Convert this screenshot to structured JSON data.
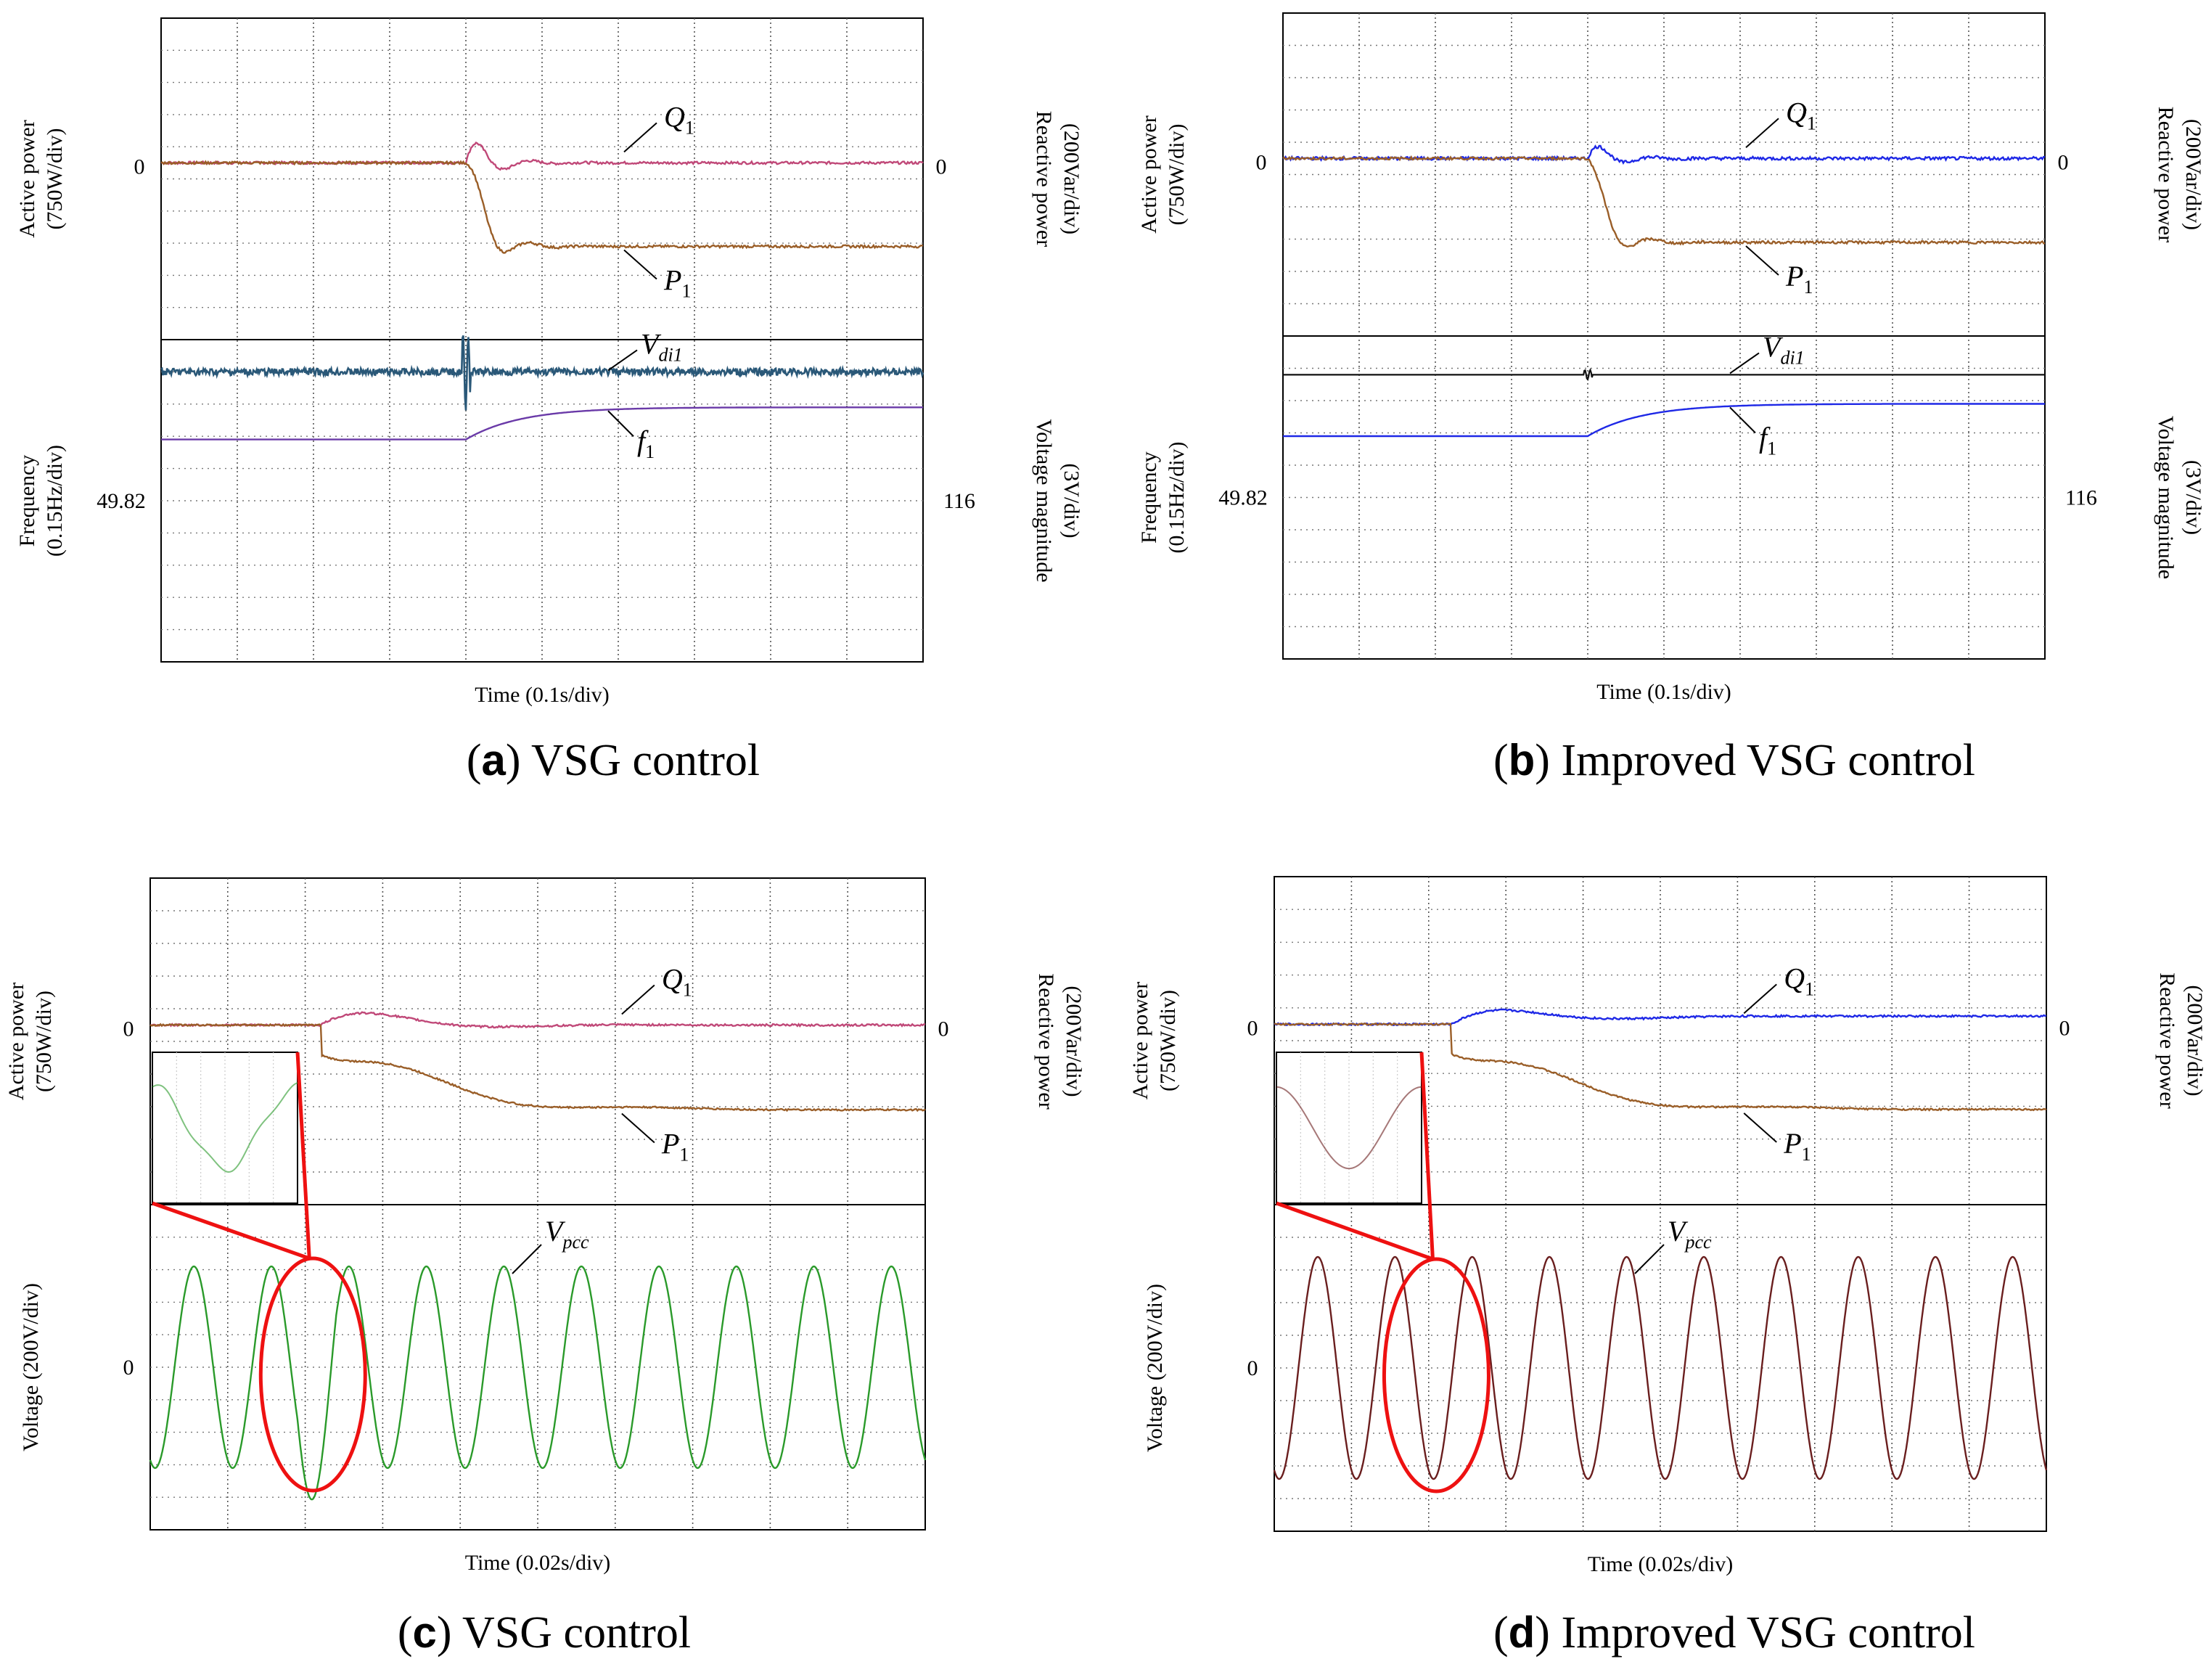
{
  "colors": {
    "pink": "#c04878",
    "brown": "#9a5e28",
    "teal": "#2a5878",
    "purple": "#6a3aa8",
    "blue": "#1e28e6",
    "green": "#2a9a2a",
    "darkred": "#6a1e1e",
    "black": "#111111",
    "highlight": "#ee1111"
  },
  "chart_data": [
    {
      "panel": "a",
      "type": "line",
      "caption_letter": "a",
      "caption_text": " VSG control",
      "xlabel": "Time (0.1s/div)",
      "top": {
        "left_label_1": "Active power",
        "left_label_2": "(750W/div)",
        "right_label_1": "Reactive power",
        "right_label_2": "(200Var/div)",
        "left_tick": "0",
        "right_tick": "0",
        "series": [
          {
            "name": "Q",
            "sub": "1",
            "color": "pink",
            "pre": 0,
            "post": 0,
            "overshoot": 1.0,
            "step_at_div": 4,
            "noise": 0.08
          },
          {
            "name": "P",
            "sub": "1",
            "color": "brown",
            "pre": 0,
            "post": -2.6,
            "overshoot": 1.5,
            "step_at_div": 4,
            "noise": 0.08
          }
        ]
      },
      "bottom": {
        "left_label_1": "Frequency",
        "left_label_2": "(0.15Hz/div)",
        "right_label_1": "Voltage magnitude",
        "right_label_2": "(3V/div)",
        "left_tick": "49.82",
        "right_tick": "116",
        "series": [
          {
            "name": "V",
            "sub": "di1",
            "color": "teal",
            "level": 1.0,
            "noise": 0.22
          },
          {
            "name": "f",
            "sub": "1",
            "color": "purple",
            "pre": -0.3,
            "post": 0.7,
            "step_at_div": 4
          }
        ]
      }
    },
    {
      "panel": "b",
      "type": "line",
      "caption_letter": "b",
      "caption_text": " Improved VSG control",
      "xlabel": "Time (0.1s/div)",
      "top": {
        "left_label_1": "Active power",
        "left_label_2": "(750W/div)",
        "right_label_1": "Reactive power",
        "right_label_2": "(200Var/div)",
        "left_tick": "0",
        "right_tick": "0",
        "series": [
          {
            "name": "Q",
            "sub": "1",
            "color": "blue",
            "pre": 0,
            "post": 0,
            "overshoot": 0.6,
            "step_at_div": 4,
            "noise": 0.1
          },
          {
            "name": "P",
            "sub": "1",
            "color": "brown",
            "pre": 0,
            "post": -2.6,
            "overshoot": 1.3,
            "step_at_div": 4,
            "noise": 0.08
          }
        ]
      },
      "bottom": {
        "left_label_1": "Frequency",
        "left_label_2": "(0.15Hz/div)",
        "right_label_1": "Voltage magnitude",
        "right_label_2": "(3V/div)",
        "left_tick": "49.82",
        "right_tick": "116",
        "series": [
          {
            "name": "V",
            "sub": "di1",
            "color": "black",
            "level": 1.2,
            "noise": 0.0
          },
          {
            "name": "f",
            "sub": "1",
            "color": "blue",
            "pre": -0.3,
            "post": 0.7,
            "step_at_div": 4
          }
        ]
      }
    },
    {
      "panel": "c",
      "type": "line",
      "caption_letter": "c",
      "caption_text": " VSG control",
      "xlabel": "Time (0.02s/div)",
      "top": {
        "left_label_1": "Active power",
        "left_label_2": "(750W/div)",
        "right_label_1": "Reactive power",
        "right_label_2": "(200Var/div)",
        "left_tick": "0",
        "right_tick": "0",
        "series": [
          {
            "name": "Q",
            "sub": "1",
            "color": "pink",
            "pre": 0,
            "post": 0,
            "bump": 0.8,
            "step_at_div": 2.2,
            "noise": 0.06
          },
          {
            "name": "P",
            "sub": "1",
            "color": "brown",
            "pre": 0,
            "post": -2.6,
            "bump": 1.6,
            "step_at_div": 2.2,
            "noise": 0.05
          }
        ]
      },
      "bottom": {
        "left_label_1": "Voltage (200V/div)",
        "left_tick": "0",
        "series": [
          {
            "name": "V",
            "sub": "pcc",
            "color": "green",
            "amplitude": 3.1,
            "cycles": 10,
            "distorted": true
          }
        ]
      }
    },
    {
      "panel": "d",
      "type": "line",
      "caption_letter": "d",
      "caption_text": " Improved VSG control",
      "xlabel": "Time (0.02s/div)",
      "top": {
        "left_label_1": "Active power",
        "left_label_2": "(750W/div)",
        "right_label_1": "Reactive power",
        "right_label_2": "(200Var/div)",
        "left_tick": "0",
        "right_tick": "0",
        "series": [
          {
            "name": "Q",
            "sub": "1",
            "color": "blue",
            "pre": 0,
            "post": 0.25,
            "bump": 0.7,
            "step_at_div": 2.3,
            "noise": 0.06
          },
          {
            "name": "P",
            "sub": "1",
            "color": "brown",
            "pre": 0,
            "post": -2.6,
            "bump": 1.6,
            "step_at_div": 2.3,
            "noise": 0.05
          }
        ]
      },
      "bottom": {
        "left_label_1": "Voltage (200V/div)",
        "left_tick": "0",
        "series": [
          {
            "name": "V",
            "sub": "pcc",
            "color": "darkred",
            "amplitude": 3.4,
            "cycles": 10,
            "distorted": false
          }
        ]
      }
    }
  ]
}
